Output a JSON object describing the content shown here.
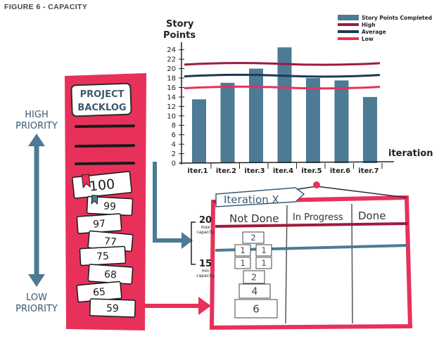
{
  "figure_label": "FIGURE 6 - CAPACITY",
  "priority": {
    "high_line1": "HIGH",
    "high_line2": "PRIORITY",
    "low_line1": "LOW",
    "low_line2": "PRIORITY"
  },
  "backlog": {
    "title_line1": "PROJECT",
    "title_line2": "BACKLOG",
    "cards": [
      "100",
      "99",
      "97",
      "77",
      "75",
      "68",
      "65",
      "59"
    ]
  },
  "chart_data": {
    "type": "bar",
    "ylabel_line1": "Story",
    "ylabel_line2": "Points",
    "xlabel": "iteration",
    "categories": [
      "iter.1",
      "iter.2",
      "iter.3",
      "iter.4",
      "iter.5",
      "iter.6",
      "iter.7"
    ],
    "yticks": [
      0,
      2,
      4,
      6,
      8,
      10,
      12,
      14,
      16,
      18,
      20,
      22,
      24
    ],
    "ylim": [
      0,
      25
    ],
    "series": [
      {
        "name": "Story Points Completed",
        "values": [
          13.5,
          17,
          20,
          24.5,
          18,
          17.5,
          14
        ]
      }
    ],
    "reference_lines": [
      {
        "name": "High",
        "value": 21
      },
      {
        "name": "Average",
        "value": 18.5
      },
      {
        "name": "Low",
        "value": 16
      }
    ],
    "colors": {
      "bars": "#4d7a95",
      "high": "#9e1b3c",
      "average": "#1d3a52",
      "low": "#e8315a"
    },
    "legend_position": "top-right"
  },
  "board": {
    "title": "Iteration X",
    "columns": [
      "Not Done",
      "In Progress",
      "Done"
    ],
    "max_value": "20",
    "max_label_line1": "max",
    "max_label_line2": "capacity",
    "min_value": "15",
    "min_label_line1": "min",
    "min_label_line2": "capacity",
    "stories": [
      "2",
      "1",
      "1",
      "1",
      "1",
      "2",
      "4",
      "6"
    ]
  },
  "colors": {
    "backlog_red": "#e8315a",
    "ink": "#2c2c2c",
    "arrow_blue": "#4d7a95",
    "frame_red": "#e8315a",
    "max_line": "#9e1b3c",
    "min_line": "#4d7a95"
  }
}
